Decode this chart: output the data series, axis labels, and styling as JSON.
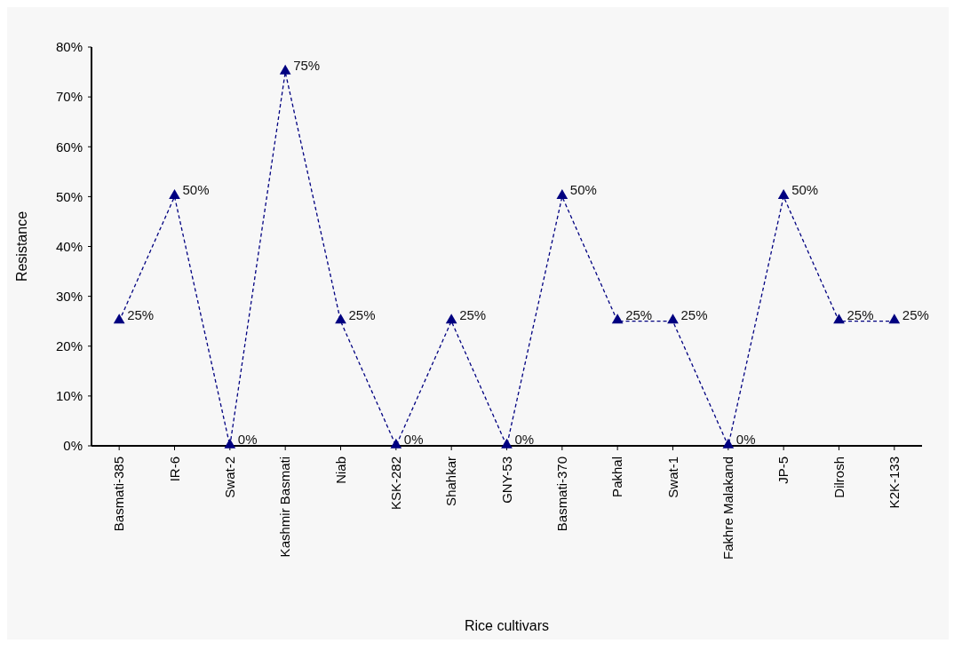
{
  "chart_data": {
    "type": "line",
    "xlabel": "Rice cultivars",
    "ylabel": "Resistance",
    "categories": [
      "Basmati-385",
      "IR-6",
      "Swat-2",
      "Kashmir Basmati",
      "Niab",
      "KSK-282",
      "Shahkar",
      "GNY-53",
      "Basmati-370",
      "Pakhal",
      "Swat-1",
      "Fakhre Malakand",
      "JP-5",
      "Dilrosh",
      "K2K-133"
    ],
    "series": [
      {
        "color": "#000080",
        "values": [
          25,
          50,
          0,
          75,
          25,
          0,
          25,
          0,
          50,
          25,
          25,
          0,
          50,
          25,
          25
        ],
        "value_labels": [
          "25%",
          "50%",
          "0%",
          "75%",
          "25%",
          "0%",
          "25%",
          "0%",
          "50%",
          "25%",
          "25%",
          "0%",
          "50%",
          "25%",
          "25%"
        ]
      }
    ],
    "ylim": [
      0,
      80
    ],
    "yticks": [
      {
        "value": 0,
        "label": "0%"
      },
      {
        "value": 10,
        "label": "10%"
      },
      {
        "value": 20,
        "label": "20%"
      },
      {
        "value": 30,
        "label": "30%"
      },
      {
        "value": 40,
        "label": "40%"
      },
      {
        "value": 50,
        "label": "50%"
      },
      {
        "value": 60,
        "label": "60%"
      },
      {
        "value": 70,
        "label": "70%"
      },
      {
        "value": 80,
        "label": "80%"
      }
    ],
    "marker": "triangle",
    "line_style": "dashed"
  }
}
